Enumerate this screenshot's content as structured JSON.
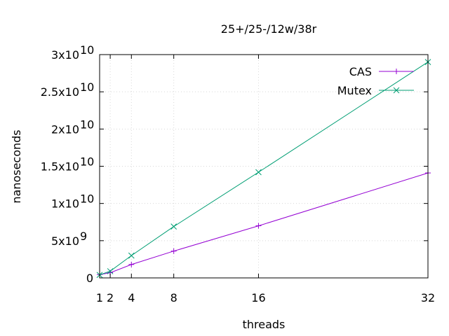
{
  "chart_data": {
    "type": "line",
    "title": "25+/25-/12w/38r",
    "xlabel": "threads",
    "ylabel": "nanoseconds",
    "x": [
      1,
      2,
      4,
      8,
      16,
      32
    ],
    "x_ticks": [
      "1",
      "2",
      "4",
      "8",
      "16",
      "32"
    ],
    "xlim": [
      1,
      32
    ],
    "ylim": [
      0,
      30000000000
    ],
    "y_ticks": [
      {
        "value": 0,
        "mantissa": "0",
        "exp": ""
      },
      {
        "value": 5000000000,
        "mantissa": "5x10",
        "exp": "9"
      },
      {
        "value": 10000000000,
        "mantissa": "1x10",
        "exp": "10"
      },
      {
        "value": 15000000000,
        "mantissa": "1.5x10",
        "exp": "10"
      },
      {
        "value": 20000000000,
        "mantissa": "2x10",
        "exp": "10"
      },
      {
        "value": 25000000000,
        "mantissa": "2.5x10",
        "exp": "10"
      },
      {
        "value": 30000000000,
        "mantissa": "3x10",
        "exp": "10"
      }
    ],
    "grid": true,
    "legend_position": "top-right",
    "series": [
      {
        "name": "CAS",
        "color": "#9400d3",
        "marker": "plus",
        "values": [
          450000000,
          700000000,
          1800000000,
          3600000000,
          7000000000,
          14100000000
        ]
      },
      {
        "name": "Mutex",
        "color": "#009e73",
        "marker": "cross",
        "values": [
          400000000,
          900000000,
          3000000000,
          6900000000,
          14200000000,
          29000000000
        ]
      }
    ]
  }
}
